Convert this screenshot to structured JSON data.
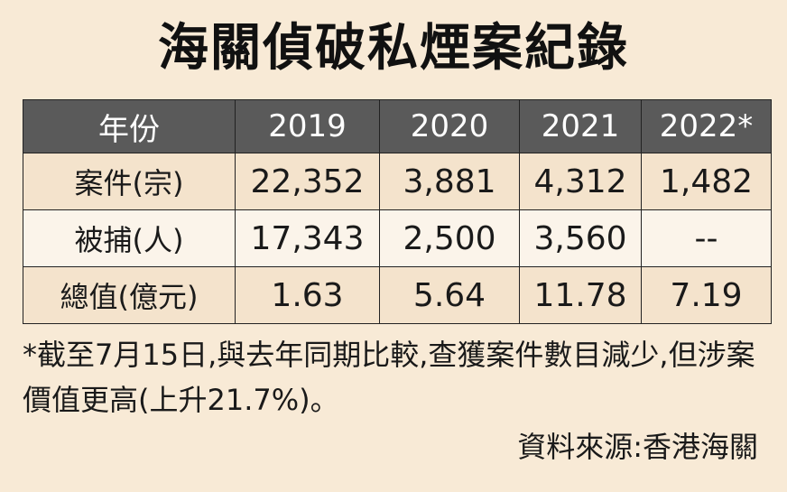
{
  "title": "海關偵破私煙案紀錄",
  "table": {
    "header": [
      "年份",
      "2019",
      "2020",
      "2021",
      "2022*"
    ],
    "rows": [
      {
        "label": "案件(宗)",
        "values": [
          "22,352",
          "3,881",
          "4,312",
          "1,482"
        ]
      },
      {
        "label": "被捕(人)",
        "values": [
          "17,343",
          "2,500",
          "3,560",
          "--"
        ]
      },
      {
        "label": "總值(億元)",
        "values": [
          "1.63",
          "5.64",
          "11.78",
          "7.19"
        ]
      }
    ]
  },
  "footnote": "*截至7月15日,與去年同期比較,查獲案件數目減少,但涉案價值更高(上升21.7%)。",
  "source": "資料來源:香港海關"
}
